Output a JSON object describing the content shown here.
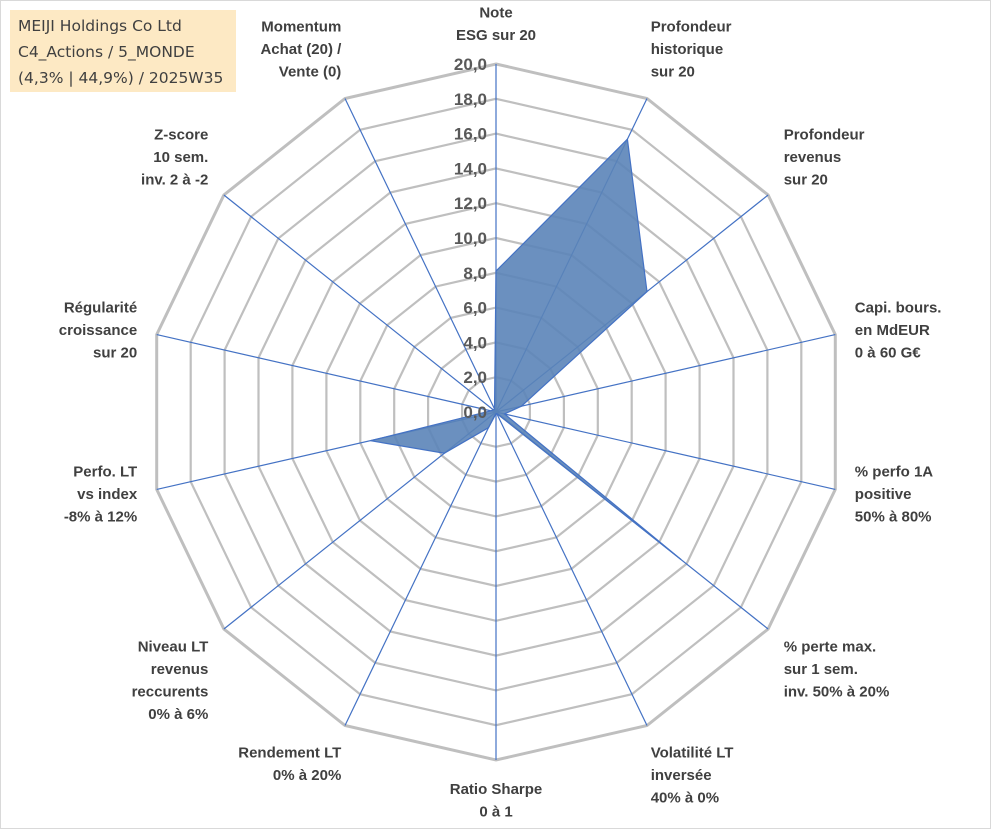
{
  "info": {
    "line1": "MEIJI Holdings Co Ltd",
    "line2": "C4_Actions / 5_MONDE",
    "line3": "(4,3% | 44,9%) / 2025W35"
  },
  "colors": {
    "grid": "#bfbfbf",
    "spoke": "#4472c4",
    "fill": "#5b84b8",
    "fill_stroke": "#4472c4",
    "info_bg": "#fde9c4"
  },
  "chart_data": {
    "type": "radar",
    "title": "",
    "range": [
      0,
      20
    ],
    "tick_step": 2,
    "tick_labels": [
      "0,0",
      "2,0",
      "4,0",
      "6,0",
      "8,0",
      "10,0",
      "12,0",
      "14,0",
      "16,0",
      "18,0",
      "20,0"
    ],
    "grid": true,
    "axes": [
      {
        "label": [
          "Note",
          "ESG sur 20"
        ],
        "value": 8.1
      },
      {
        "label": [
          "Profondeur",
          "historique",
          "sur 20"
        ],
        "value": 17.4
      },
      {
        "label": [
          "Profondeur",
          "revenus",
          "sur 20"
        ],
        "value": 11.1
      },
      {
        "label": [
          "Capi. bours.",
          "en MdEUR",
          "0 à 60 G€"
        ],
        "value": 1.5
      },
      {
        "label": [
          "% perfo 1A",
          "positive",
          "50% à 80%"
        ],
        "value": 0.5
      },
      {
        "label": [
          "% perte max.",
          "sur 1 sem.",
          "inv. 50% à 20%"
        ],
        "value": 13.6
      },
      {
        "label": [
          "Volatilité LT",
          "inversée",
          "40% à 0%"
        ],
        "value": 0.1
      },
      {
        "label": [
          "Ratio Sharpe",
          "0 à 1"
        ],
        "value": 0.1
      },
      {
        "label": [
          "Rendement LT",
          "0% à 20%"
        ],
        "value": 1.0
      },
      {
        "label": [
          "Niveau LT",
          "revenus",
          "reccurents",
          "0% à 6%"
        ],
        "value": 3.8
      },
      {
        "label": [
          "Perfo. LT",
          "vs index",
          "-8% à 12%"
        ],
        "value": 7.4
      },
      {
        "label": [
          "Régularité",
          "croissance",
          "sur 20"
        ],
        "value": 0.3
      },
      {
        "label": [
          "Z-score",
          "10 sem.",
          "inv. 2 à -2"
        ],
        "value": 0.2
      },
      {
        "label": [
          "Momentum",
          "Achat (20) /",
          "Vente (0)"
        ],
        "value": 0.2
      }
    ]
  }
}
